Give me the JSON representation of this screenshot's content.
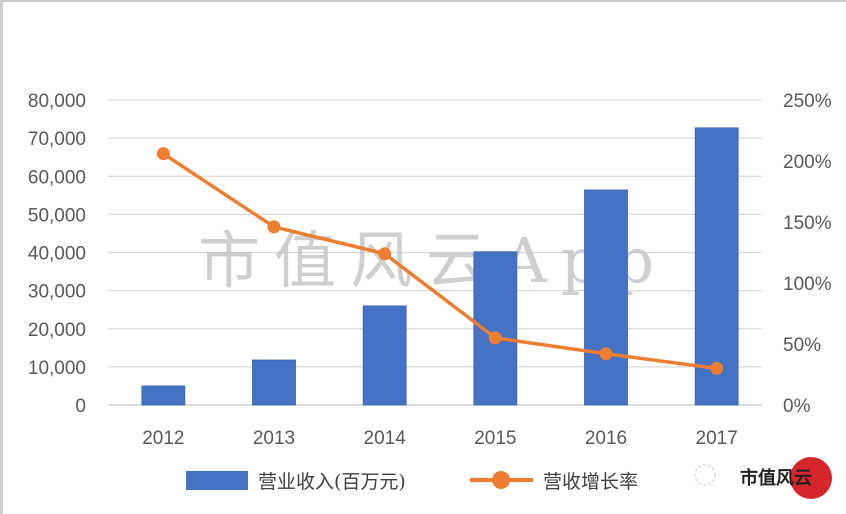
{
  "chart_data": {
    "type": "bar+line",
    "title": "",
    "categories": [
      "2012",
      "2013",
      "2014",
      "2015",
      "2016",
      "2017"
    ],
    "series": [
      {
        "name": "营业收入(百万元)",
        "type": "bar",
        "axis": "left",
        "color": "#4472C4",
        "values": [
          5000,
          11800,
          26000,
          40200,
          56400,
          72700
        ]
      },
      {
        "name": "营收增长率",
        "type": "line",
        "axis": "right",
        "color": "#ED7D31",
        "values": [
          2.06,
          1.46,
          1.24,
          0.55,
          0.42,
          0.3
        ]
      }
    ],
    "left_axis": {
      "ylim": [
        0,
        80000
      ],
      "ticks": [
        0,
        10000,
        20000,
        30000,
        40000,
        50000,
        60000,
        70000,
        80000
      ],
      "tick_labels": [
        "0",
        "10,000",
        "20,000",
        "30,000",
        "40,000",
        "50,000",
        "60,000",
        "70,000",
        "80,000"
      ]
    },
    "right_axis": {
      "ylim": [
        0,
        2.5
      ],
      "ticks": [
        0,
        0.5,
        1.0,
        1.5,
        2.0,
        2.5
      ],
      "tick_labels": [
        "0%",
        "50%",
        "100%",
        "150%",
        "200%",
        "250%"
      ]
    },
    "xlabel": "",
    "ylabel": "",
    "grid": true,
    "legend_position": "bottom"
  },
  "legend": {
    "bar_label": "营业收入(百万元)",
    "line_label": "营收增长率"
  },
  "watermark": "市值风云App",
  "brand": {
    "label": "市值风云"
  },
  "colors": {
    "bar": "#4472C4",
    "line": "#ED7D31",
    "grid": "#d9d9d9",
    "axis_text": "#595959"
  }
}
